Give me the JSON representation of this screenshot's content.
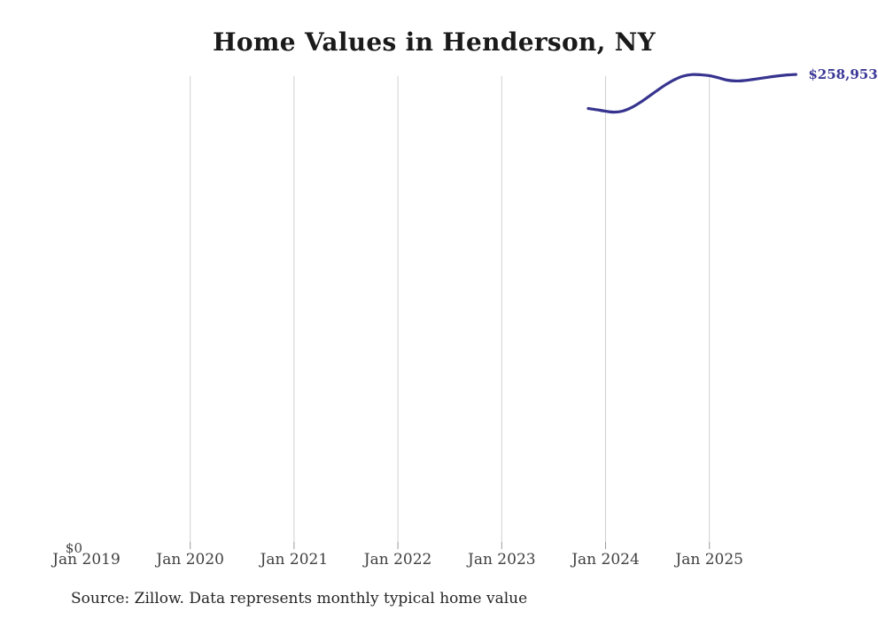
{
  "page": {
    "source_note": "Source: Zillow. Data represents monthly typical home value"
  },
  "chart_data": {
    "type": "line",
    "title": "Home Values in Henderson, NY",
    "x_tick_labels": [
      "Jan 2019",
      "Jan 2020",
      "Jan 2021",
      "Jan 2022",
      "Jan 2023",
      "Jan 2024",
      "Jan 2025"
    ],
    "y_tick_labels": [
      "$0"
    ],
    "ylim": [
      0,
      270000
    ],
    "x": [
      "2023-11",
      "2023-12",
      "2024-01",
      "2024-02",
      "2024-03",
      "2024-04",
      "2024-05",
      "2024-06",
      "2024-07",
      "2024-08",
      "2024-09",
      "2024-10",
      "2024-11",
      "2024-12",
      "2025-01",
      "2025-02",
      "2025-03",
      "2025-04",
      "2025-05",
      "2025-06",
      "2025-07",
      "2025-08",
      "2025-09",
      "2025-10",
      "2025-11"
    ],
    "values": [
      240300,
      239600,
      238800,
      238300,
      238900,
      240800,
      243600,
      246900,
      250300,
      253500,
      256200,
      258100,
      258900,
      258800,
      258300,
      257200,
      255900,
      255400,
      255600,
      256200,
      256900,
      257600,
      258200,
      258700,
      258953
    ],
    "end_label": "$258,953",
    "line_color": "#37348f",
    "end_label_color": "#3b3897",
    "gridline_color": "#cfcfcf",
    "tick_color": "#9b9b9b",
    "legend": "none",
    "grid": "vertical-only"
  }
}
